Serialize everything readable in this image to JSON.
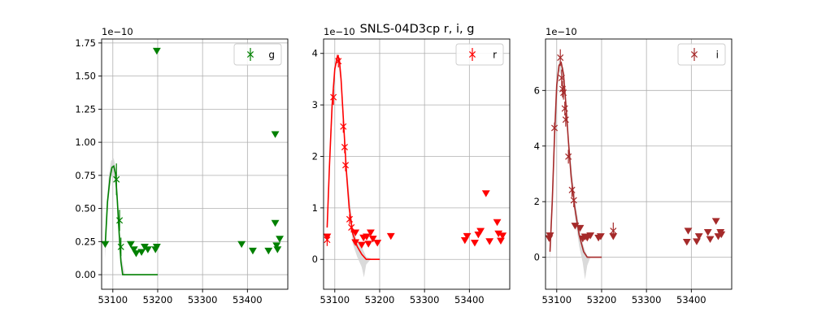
{
  "figure": {
    "title": "SNLS-04D3cp  r, i, g"
  },
  "colors": {
    "g": "#008000",
    "r": "#ff0000",
    "i": "#a52a2a",
    "band": "#d3d3d3",
    "grid": "#b0b0b0"
  },
  "chart_data": [
    {
      "type": "scatter",
      "band": "g",
      "legend": "g",
      "legend_position": "top-right",
      "grid": true,
      "offset_label": "1e−10",
      "xlim": [
        53075,
        53490
      ],
      "ylim": [
        -0.11,
        1.78
      ],
      "xticks": [
        53100,
        53200,
        53300,
        53400
      ],
      "xtick_labels": [
        "53100",
        "53200",
        "53300",
        "53400"
      ],
      "yticks": [
        0.0,
        0.25,
        0.5,
        0.75,
        1.0,
        1.25,
        1.5,
        1.75
      ],
      "ytick_labels": [
        "0.00",
        "0.25",
        "0.50",
        "0.75",
        "1.00",
        "1.25",
        "1.50",
        "1.75"
      ],
      "detections": [
        {
          "x": 53108,
          "y": 0.72,
          "err": 0.12
        },
        {
          "x": 53115,
          "y": 0.41,
          "err": 0.08
        },
        {
          "x": 53118,
          "y": 0.21,
          "err": 0.07
        }
      ],
      "upper_limits": [
        {
          "x": 53083,
          "y": 0.23
        },
        {
          "x": 53140,
          "y": 0.23
        },
        {
          "x": 53147,
          "y": 0.19
        },
        {
          "x": 53152,
          "y": 0.16
        },
        {
          "x": 53164,
          "y": 0.17
        },
        {
          "x": 53171,
          "y": 0.21
        },
        {
          "x": 53178,
          "y": 0.19
        },
        {
          "x": 53195,
          "y": 0.19
        },
        {
          "x": 53198,
          "y": 0.21
        },
        {
          "x": 53198,
          "y": 1.69
        },
        {
          "x": 53387,
          "y": 0.23
        },
        {
          "x": 53412,
          "y": 0.18
        },
        {
          "x": 53447,
          "y": 0.18
        },
        {
          "x": 53462,
          "y": 0.39
        },
        {
          "x": 53462,
          "y": 1.06
        },
        {
          "x": 53465,
          "y": 0.22
        },
        {
          "x": 53467,
          "y": 0.19
        },
        {
          "x": 53472,
          "y": 0.27
        }
      ],
      "model": [
        [
          53083,
          0.22
        ],
        [
          53088,
          0.55
        ],
        [
          53094,
          0.74
        ],
        [
          53098,
          0.81
        ],
        [
          53102,
          0.82
        ],
        [
          53106,
          0.76
        ],
        [
          53110,
          0.56
        ],
        [
          53114,
          0.32
        ],
        [
          53118,
          0.1
        ],
        [
          53122,
          0.0
        ],
        [
          53130,
          0.0
        ],
        [
          53160,
          0.0
        ],
        [
          53180,
          0.0
        ],
        [
          53200,
          0.0
        ]
      ],
      "model_band": [
        [
          53083,
          0.12,
          0.3
        ],
        [
          53090,
          0.55,
          0.72
        ],
        [
          53096,
          0.74,
          0.86
        ],
        [
          53102,
          0.76,
          0.88
        ],
        [
          53108,
          0.6,
          0.78
        ],
        [
          53114,
          0.22,
          0.42
        ],
        [
          53120,
          0.0,
          0.12
        ],
        [
          53126,
          0.0,
          0.02
        ]
      ]
    },
    {
      "type": "scatter",
      "band": "r",
      "legend": "r",
      "legend_position": "top-right",
      "grid": true,
      "offset_label": "1e−10",
      "xlim": [
        53075,
        53490
      ],
      "ylim": [
        -0.58,
        4.28
      ],
      "xticks": [
        53100,
        53200,
        53300,
        53400
      ],
      "xtick_labels": [
        "53100",
        "53200",
        "53300",
        "53400"
      ],
      "yticks": [
        0,
        1,
        2,
        3,
        4
      ],
      "ytick_labels": [
        "0",
        "1",
        "2",
        "3",
        "4"
      ],
      "detections": [
        {
          "x": 53083,
          "y": 0.38,
          "err": 0.12
        },
        {
          "x": 53097,
          "y": 3.15,
          "err": 0.15
        },
        {
          "x": 53108,
          "y": 3.85,
          "err": 0.12
        },
        {
          "x": 53119,
          "y": 2.58,
          "err": 0.12
        },
        {
          "x": 53122,
          "y": 2.18,
          "err": 0.12
        },
        {
          "x": 53124,
          "y": 1.83,
          "err": 0.12
        },
        {
          "x": 53133,
          "y": 0.78,
          "err": 0.1
        },
        {
          "x": 53137,
          "y": 0.62,
          "err": 0.1
        }
      ],
      "upper_limits": [
        {
          "x": 53083,
          "y": 0.44
        },
        {
          "x": 53146,
          "y": 0.52
        },
        {
          "x": 53146,
          "y": 0.33
        },
        {
          "x": 53160,
          "y": 0.28
        },
        {
          "x": 53164,
          "y": 0.42
        },
        {
          "x": 53171,
          "y": 0.44
        },
        {
          "x": 53175,
          "y": 0.3
        },
        {
          "x": 53180,
          "y": 0.52
        },
        {
          "x": 53185,
          "y": 0.4
        },
        {
          "x": 53195,
          "y": 0.32
        },
        {
          "x": 53225,
          "y": 0.45
        },
        {
          "x": 53390,
          "y": 0.37
        },
        {
          "x": 53395,
          "y": 0.45
        },
        {
          "x": 53412,
          "y": 0.32
        },
        {
          "x": 53420,
          "y": 0.48
        },
        {
          "x": 53425,
          "y": 0.55
        },
        {
          "x": 53437,
          "y": 1.28
        },
        {
          "x": 53445,
          "y": 0.35
        },
        {
          "x": 53462,
          "y": 0.72
        },
        {
          "x": 53465,
          "y": 0.5
        },
        {
          "x": 53470,
          "y": 0.36
        },
        {
          "x": 53474,
          "y": 0.46
        }
      ],
      "model": [
        [
          53083,
          0.62
        ],
        [
          53088,
          1.8
        ],
        [
          53094,
          3.0
        ],
        [
          53100,
          3.7
        ],
        [
          53106,
          3.95
        ],
        [
          53110,
          3.9
        ],
        [
          53114,
          3.5
        ],
        [
          53120,
          2.6
        ],
        [
          53126,
          1.7
        ],
        [
          53132,
          1.0
        ],
        [
          53140,
          0.5
        ],
        [
          53150,
          0.25
        ],
        [
          53160,
          0.1
        ],
        [
          53170,
          0.0
        ],
        [
          53200,
          0.0
        ]
      ],
      "model_band": [
        [
          53083,
          0.5,
          0.75
        ],
        [
          53090,
          2.1,
          2.5
        ],
        [
          53100,
          3.6,
          3.8
        ],
        [
          53106,
          3.9,
          4.0
        ],
        [
          53114,
          3.4,
          3.6
        ],
        [
          53126,
          1.55,
          1.85
        ],
        [
          53140,
          0.3,
          0.6
        ],
        [
          53150,
          0.05,
          0.35
        ],
        [
          53160,
          -0.15,
          0.25
        ],
        [
          53165,
          -0.35,
          0.15
        ],
        [
          53170,
          -0.1,
          0.05
        ],
        [
          53180,
          0.0,
          0.02
        ]
      ]
    },
    {
      "type": "scatter",
      "band": "i",
      "legend": "i",
      "legend_position": "top-right",
      "grid": true,
      "offset_label": "1e−10",
      "xlim": [
        53075,
        53490
      ],
      "ylim": [
        -1.15,
        7.85
      ],
      "xticks": [
        53100,
        53200,
        53300,
        53400
      ],
      "xtick_labels": [
        "53100",
        "53200",
        "53300",
        "53400"
      ],
      "yticks": [
        0,
        2,
        4,
        6
      ],
      "ytick_labels": [
        "0",
        "2",
        "4",
        "6"
      ],
      "detections": [
        {
          "x": 53095,
          "y": 4.65,
          "err": 0.2
        },
        {
          "x": 53108,
          "y": 7.18,
          "err": 0.3
        },
        {
          "x": 53111,
          "y": 6.45,
          "err": 0.3
        },
        {
          "x": 53113,
          "y": 6.05,
          "err": 0.3
        },
        {
          "x": 53115,
          "y": 5.92,
          "err": 0.25
        },
        {
          "x": 53118,
          "y": 5.35,
          "err": 0.25
        },
        {
          "x": 53120,
          "y": 4.95,
          "err": 0.25
        },
        {
          "x": 53126,
          "y": 3.62,
          "err": 0.25
        },
        {
          "x": 53134,
          "y": 2.42,
          "err": 0.25
        },
        {
          "x": 53138,
          "y": 2.05,
          "err": 0.25
        },
        {
          "x": 53226,
          "y": 0.95,
          "err": 0.3
        }
      ],
      "upper_limits": [
        {
          "x": 53083,
          "y": 0.68
        },
        {
          "x": 53085,
          "y": 0.78
        },
        {
          "x": 53141,
          "y": 1.13
        },
        {
          "x": 53152,
          "y": 1.05
        },
        {
          "x": 53158,
          "y": 0.67
        },
        {
          "x": 53163,
          "y": 0.74
        },
        {
          "x": 53168,
          "y": 0.7
        },
        {
          "x": 53175,
          "y": 0.78
        },
        {
          "x": 53193,
          "y": 0.7
        },
        {
          "x": 53198,
          "y": 0.75
        },
        {
          "x": 53226,
          "y": 0.75
        },
        {
          "x": 53390,
          "y": 0.55
        },
        {
          "x": 53393,
          "y": 0.95
        },
        {
          "x": 53412,
          "y": 0.57
        },
        {
          "x": 53417,
          "y": 0.75
        },
        {
          "x": 53437,
          "y": 0.9
        },
        {
          "x": 53442,
          "y": 0.65
        },
        {
          "x": 53455,
          "y": 1.3
        },
        {
          "x": 53460,
          "y": 0.75
        },
        {
          "x": 53465,
          "y": 0.9
        },
        {
          "x": 53467,
          "y": 0.82
        }
      ],
      "model": [
        [
          53085,
          0.2
        ],
        [
          53090,
          2.0
        ],
        [
          53095,
          4.3
        ],
        [
          53100,
          6.2
        ],
        [
          53105,
          6.9
        ],
        [
          53110,
          7.0
        ],
        [
          53115,
          6.6
        ],
        [
          53120,
          5.6
        ],
        [
          53126,
          4.2
        ],
        [
          53132,
          2.9
        ],
        [
          53140,
          1.8
        ],
        [
          53150,
          0.8
        ],
        [
          53160,
          0.2
        ],
        [
          53168,
          0.0
        ],
        [
          53200,
          0.0
        ]
      ],
      "model_band": [
        [
          53085,
          -0.3,
          0.5
        ],
        [
          53095,
          4.0,
          4.6
        ],
        [
          53105,
          6.7,
          7.1
        ],
        [
          53115,
          6.4,
          6.8
        ],
        [
          53126,
          4.0,
          4.4
        ],
        [
          53140,
          1.5,
          2.1
        ],
        [
          53150,
          0.4,
          1.1
        ],
        [
          53158,
          -0.2,
          0.5
        ],
        [
          53163,
          -0.8,
          0.25
        ],
        [
          53168,
          -0.3,
          0.05
        ],
        [
          53175,
          0.0,
          0.02
        ]
      ]
    }
  ]
}
